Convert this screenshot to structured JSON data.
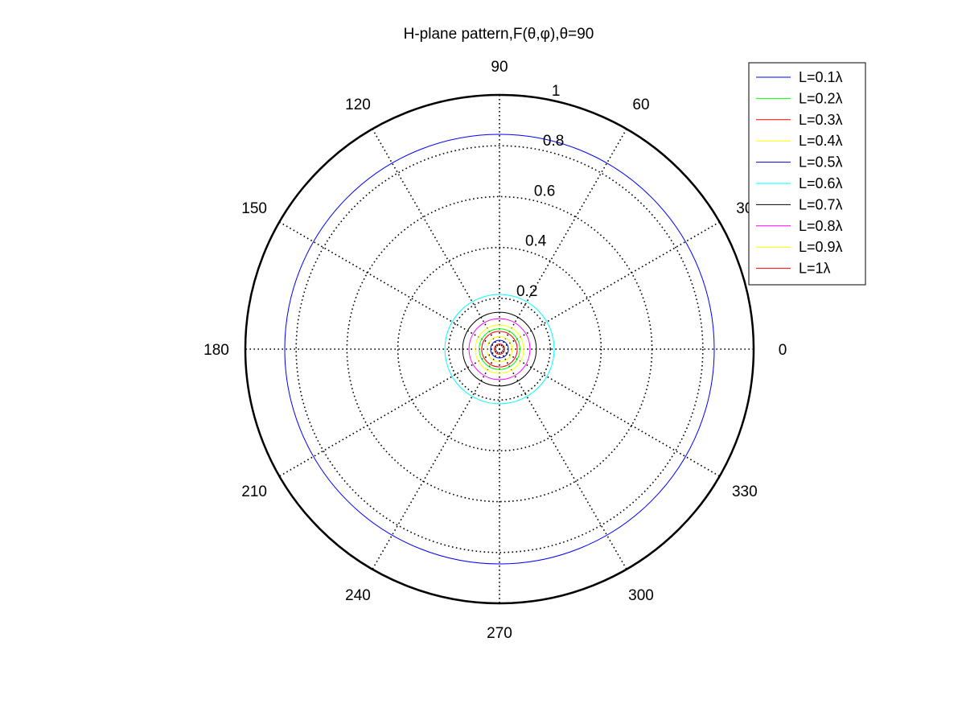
{
  "chart_data": {
    "type": "polar",
    "title": "H-plane pattern,F(θ,φ),θ=90",
    "rlim": [
      0,
      1
    ],
    "r_ticks": [
      "0.2",
      "0.4",
      "0.6",
      "0.8",
      "1"
    ],
    "r_tick_values": [
      0.2,
      0.4,
      0.6,
      0.8,
      1.0
    ],
    "theta_ticks": [
      "0",
      "30",
      "60",
      "90",
      "120",
      "150",
      "180",
      "210",
      "240",
      "270",
      "300",
      "330"
    ],
    "theta_tick_values": [
      0,
      30,
      60,
      90,
      120,
      150,
      180,
      210,
      240,
      270,
      300,
      330
    ],
    "grid": true,
    "legend_position": "top-right",
    "series": [
      {
        "name": "L=0.1λ",
        "color": "#0000ff",
        "values_r": 0.845
      },
      {
        "name": "L=0.2λ",
        "color": "#00ff00",
        "values_r": 0.08
      },
      {
        "name": "L=0.3λ",
        "color": "#ff0000",
        "values_r": 0.07
      },
      {
        "name": "L=0.4λ",
        "color": "#ffff00",
        "values_r": 0.05
      },
      {
        "name": "L=0.5λ",
        "color": "#0000cc",
        "values_r": 0.035
      },
      {
        "name": "L=0.6λ",
        "color": "#00ffff",
        "values_r": 0.215
      },
      {
        "name": "L=0.7λ",
        "color": "#000000",
        "values_r": 0.145
      },
      {
        "name": "L=0.8λ",
        "color": "#ff00ff",
        "values_r": 0.12
      },
      {
        "name": "L=0.9λ",
        "color": "#ffff00",
        "values_r": 0.095
      },
      {
        "name": "L=1λ",
        "color": "#ff0000",
        "values_r": 0.02
      }
    ]
  }
}
